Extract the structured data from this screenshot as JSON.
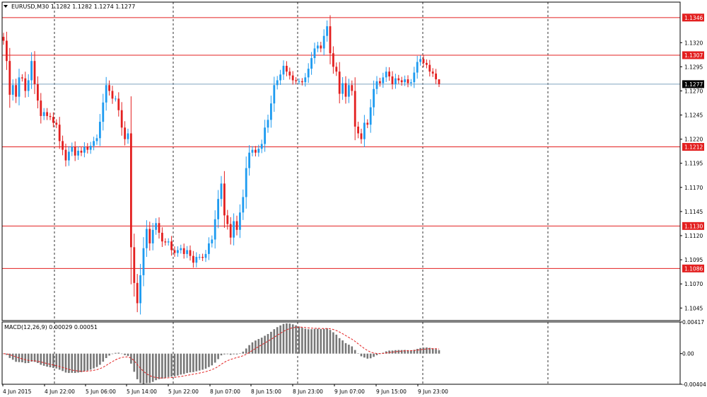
{
  "chart_data": {
    "type": "candlestick",
    "title": "EURUSD,M30  1.1282 1.1282 1.1274 1.1277",
    "symbol": "EURUSD",
    "timeframe": "M30",
    "ohlc_last": {
      "open": 1.1282,
      "high": 1.1282,
      "low": 1.1274,
      "close": 1.1277
    },
    "price_axis": {
      "ylim": [
        1.1032,
        1.1362
      ],
      "ticks": [
        "1.1320",
        "1.1295",
        "1.1270",
        "1.1245",
        "1.1220",
        "1.1195",
        "1.1170",
        "1.1145",
        "1.1120",
        "1.1095",
        "1.1070",
        "1.1045"
      ]
    },
    "current_price": {
      "value": 1.1277,
      "label": "1.1277",
      "color": "#000000"
    },
    "levels": [
      {
        "value": 1.1346,
        "label": "1.1346"
      },
      {
        "value": 1.1307,
        "label": "1.1307"
      },
      {
        "value": 1.1212,
        "label": "1.1212"
      },
      {
        "value": 1.113,
        "label": "1.1130"
      },
      {
        "value": 1.1086,
        "label": "1.1086"
      }
    ],
    "time_labels": [
      "4 Jun 2015",
      "4 Jun 22:00",
      "5 Jun 06:00",
      "5 Jun 14:00",
      "5 Jun 22:00",
      "8 Jun 07:00",
      "8 Jun 15:00",
      "8 Jun 23:00",
      "9 Jun 07:00",
      "9 Jun 15:00",
      "9 Jun 23:00"
    ],
    "grid": {
      "vertical_dashed": true
    },
    "colors": {
      "bull": "#1e9bf0",
      "bear": "#e32020",
      "level": "#e32020",
      "current": "#7fa3bf",
      "macd_hist": "#777777",
      "macd_signal": "#e32020"
    },
    "closes": [
      1.1322,
      1.1301,
      1.1266,
      1.1276,
      1.1264,
      1.1284,
      1.1283,
      1.127,
      1.1281,
      1.1301,
      1.1277,
      1.126,
      1.1244,
      1.1248,
      1.1244,
      1.1243,
      1.1237,
      1.1235,
      1.1218,
      1.1209,
      1.1198,
      1.1207,
      1.1212,
      1.1203,
      1.1208,
      1.1206,
      1.1212,
      1.1209,
      1.1213,
      1.1218,
      1.1221,
      1.1238,
      1.1258,
      1.1276,
      1.127,
      1.1262,
      1.1262,
      1.125,
      1.1232,
      1.122,
      1.1226,
      1.1108,
      1.1071,
      1.105,
      1.1079,
      1.1107,
      1.1127,
      1.1112,
      1.1126,
      1.1133,
      1.1123,
      1.1114,
      1.1113,
      1.1114,
      1.1105,
      1.1102,
      1.1105,
      1.1107,
      1.1101,
      1.1105,
      1.1099,
      1.1092,
      1.1098,
      1.1098,
      1.1097,
      1.1101,
      1.1112,
      1.1116,
      1.1137,
      1.1158,
      1.1174,
      1.1141,
      1.1132,
      1.1118,
      1.1135,
      1.1126,
      1.1144,
      1.116,
      1.119,
      1.1206,
      1.1209,
      1.1206,
      1.121,
      1.1215,
      1.1232,
      1.124,
      1.1257,
      1.1276,
      1.1281,
      1.1287,
      1.1296,
      1.129,
      1.1286,
      1.1281,
      1.128,
      1.128,
      1.1279,
      1.1284,
      1.1293,
      1.1304,
      1.1314,
      1.1317,
      1.1314,
      1.1327,
      1.1337,
      1.1309,
      1.1295,
      1.129,
      1.1267,
      1.1278,
      1.1264,
      1.1276,
      1.127,
      1.1233,
      1.1226,
      1.122,
      1.1237,
      1.1235,
      1.1253,
      1.1272,
      1.128,
      1.1278,
      1.1284,
      1.129,
      1.1285,
      1.1277,
      1.1283,
      1.1281,
      1.1279,
      1.1282,
      1.1278,
      1.1279,
      1.1289,
      1.13,
      1.1303,
      1.1299,
      1.1297,
      1.129,
      1.1288,
      1.1282,
      1.1277
    ],
    "macd": {
      "label": "MACD(12,26,9) 0.00029 0.00051",
      "params": "12,26,9",
      "main": 0.00029,
      "signal": 0.00051,
      "ylim": [
        -0.00404,
        0.00417
      ],
      "ticks": [
        "0.00417",
        "0.00",
        "-0.00404"
      ]
    }
  }
}
